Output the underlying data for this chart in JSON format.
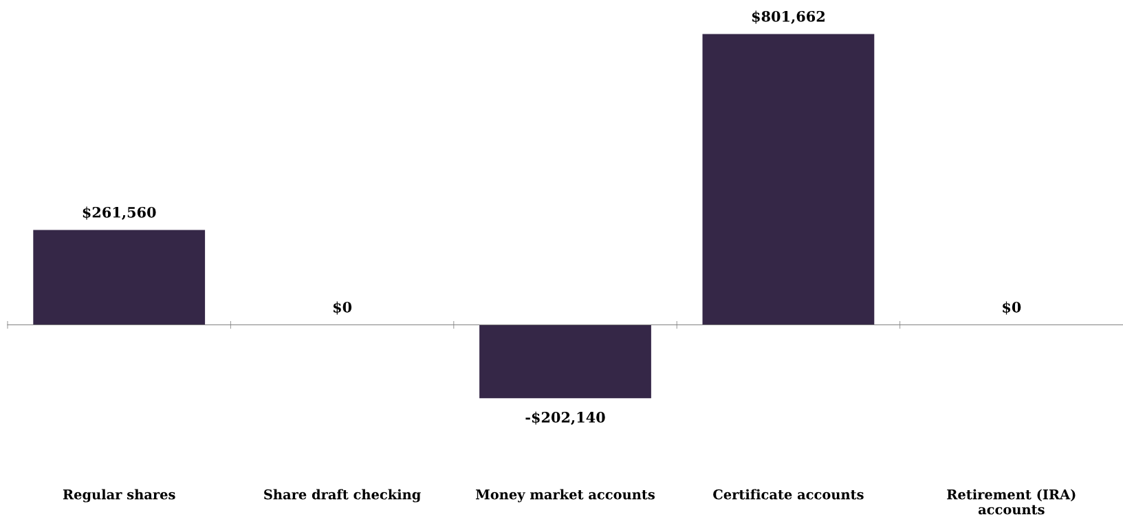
{
  "chart_data": {
    "type": "bar",
    "categories": [
      "Regular shares",
      "Share draft checking",
      "Money market accounts",
      "Certificate accounts",
      "Retirement (IRA)\naccounts"
    ],
    "values": [
      261560,
      0,
      -202140,
      801662,
      0
    ],
    "value_labels": [
      "$261,560",
      "$0",
      "-$202,140",
      "$801,662",
      "$0"
    ],
    "color": "#352747",
    "grid": false,
    "legend": false
  }
}
